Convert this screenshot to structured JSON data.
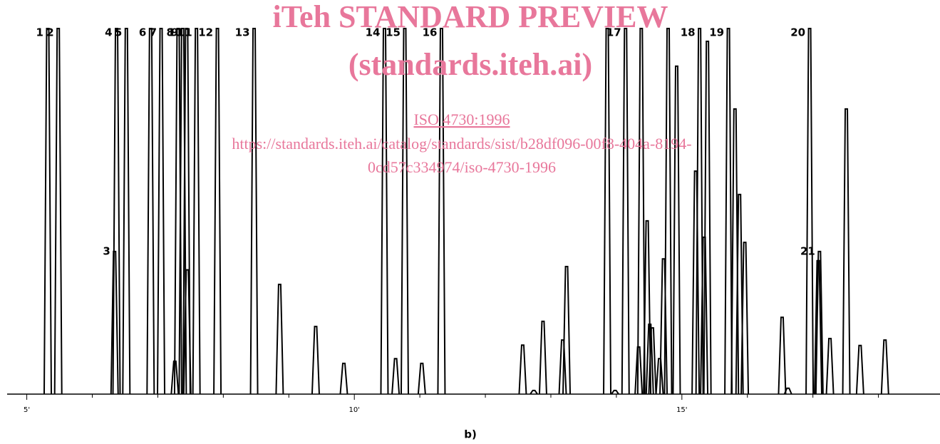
{
  "chart_data": {
    "type": "chromatogram",
    "caption": "b)",
    "color": "#000000",
    "x": [
      5.32,
      5.48,
      6.34,
      6.37,
      6.52,
      6.89,
      7.05,
      7.26,
      7.31,
      7.38,
      7.44,
      7.45,
      7.59,
      7.91,
      8.47,
      8.86,
      9.41,
      9.84,
      10.46,
      10.63,
      10.77,
      11.03,
      11.33,
      12.57,
      12.74,
      12.88,
      13.18,
      13.24,
      13.86,
      13.98,
      14.14,
      14.34,
      14.38,
      14.47,
      14.51,
      14.55,
      14.66,
      14.72,
      14.79,
      14.92,
      15.21,
      15.27,
      15.34,
      15.39,
      15.71,
      15.81,
      15.88,
      15.96,
      16.53,
      16.62,
      16.95,
      17.08,
      17.1,
      17.26,
      17.51,
      17.72,
      18.1
    ],
    "values": [
      100,
      100,
      39,
      100,
      100,
      100,
      100,
      9,
      100,
      100,
      100,
      34,
      100,
      100,
      100,
      30,
      18.5,
      8.4,
      100,
      9.7,
      100,
      8.4,
      100,
      13.4,
      1,
      19.9,
      14.8,
      34.9,
      100,
      1,
      100,
      12.9,
      100,
      47.4,
      19.1,
      18.1,
      9.7,
      37,
      100,
      89.7,
      61,
      100,
      42.9,
      96.5,
      100,
      78,
      54.6,
      41.5,
      21,
      1.6,
      100,
      36.5,
      39,
      15.2,
      78,
      13.3,
      14.8
    ],
    "peak_labels": [
      "1",
      "2",
      "3",
      "4",
      "5",
      "6",
      "7",
      null,
      "8",
      "9",
      "10",
      null,
      "11",
      "12",
      "13",
      null,
      null,
      null,
      "14",
      null,
      "15",
      null,
      "16",
      null,
      null,
      null,
      null,
      null,
      null,
      null,
      "17",
      null,
      null,
      null,
      null,
      null,
      null,
      null,
      null,
      null,
      null,
      "18",
      null,
      null,
      "19",
      null,
      null,
      null,
      null,
      null,
      "20",
      null,
      "21",
      null,
      null,
      null,
      null
    ],
    "xlim": [
      4.7,
      18.94
    ],
    "ylim": [
      0,
      100
    ],
    "xticks": [
      {
        "value": 5,
        "label": "5'"
      },
      {
        "value": 10,
        "label": "10'"
      },
      {
        "value": 15,
        "label": "15'"
      }
    ],
    "minor_xticks": [
      6,
      7,
      8,
      9,
      11,
      12,
      13,
      14,
      16,
      17,
      18
    ]
  },
  "watermark": {
    "title": "iTeh STANDARD PREVIEW",
    "site": "(standards.iteh.ai)",
    "standard": "ISO 4730:1996",
    "url_line1": "https://standards.iteh.ai/catalog/standards/sist/b28df096-00f8-404a-8194-",
    "url_line2": "0cd57c334974/iso-4730-1996"
  }
}
